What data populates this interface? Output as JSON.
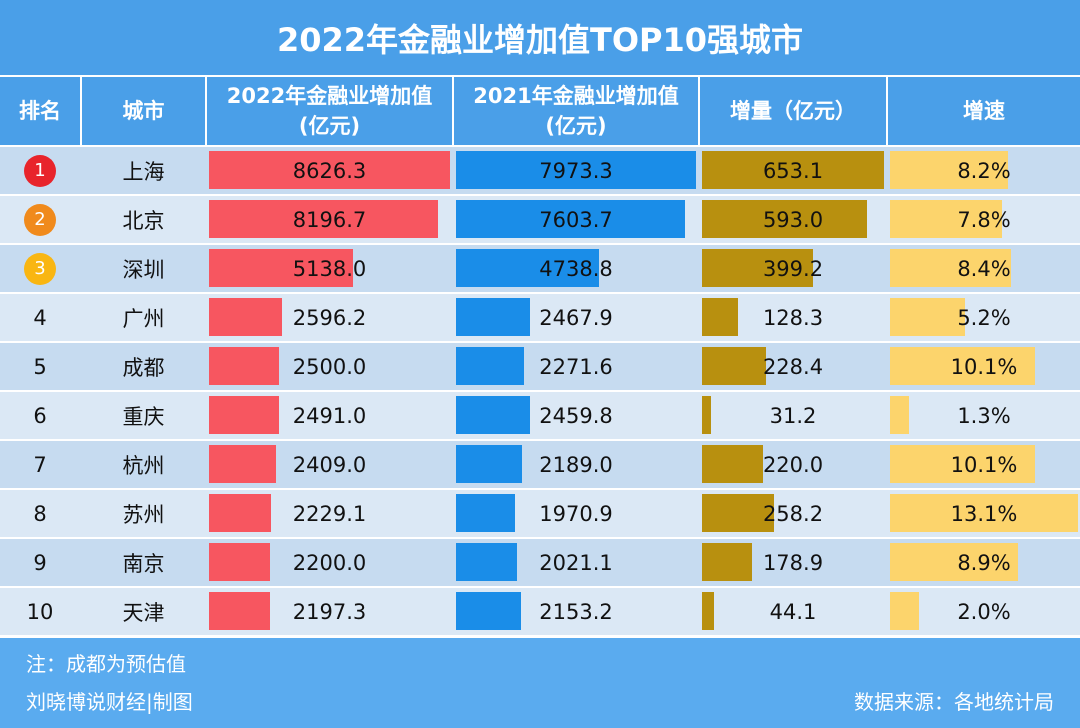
{
  "title": "2022年金融业增加值TOP10强城市",
  "table": {
    "columns": [
      [
        "排名"
      ],
      [
        "城市"
      ],
      [
        "2022年金融业增加值",
        "(亿元)"
      ],
      [
        "2021年金融业增加值",
        "(亿元)"
      ],
      [
        "增量（亿元）"
      ],
      [
        "增速"
      ]
    ],
    "rows": [
      [
        "1",
        "上海",
        "8626.3",
        "7973.3",
        "653.1",
        "8.2%"
      ],
      [
        "2",
        "北京",
        "8196.7",
        "7603.7",
        "593.0",
        "7.8%"
      ],
      [
        "3",
        "深圳",
        "5138.0",
        "4738.8",
        "399.2",
        "8.4%"
      ],
      [
        "4",
        "广州",
        "2596.2",
        "2467.9",
        "128.3",
        "5.2%"
      ],
      [
        "5",
        "成都",
        "2500.0",
        "2271.6",
        "228.4",
        "10.1%"
      ],
      [
        "6",
        "重庆",
        "2491.0",
        "2459.8",
        "31.2",
        "1.3%"
      ],
      [
        "7",
        "杭州",
        "2409.0",
        "2189.0",
        "220.0",
        "10.1%"
      ],
      [
        "8",
        "苏州",
        "2229.1",
        "1970.9",
        "258.2",
        "13.1%"
      ],
      [
        "9",
        "南京",
        "2200.0",
        "2021.1",
        "178.9",
        "8.9%"
      ],
      [
        "10",
        "天津",
        "2197.3",
        "2153.2",
        "44.1",
        "2.0%"
      ]
    ]
  },
  "footer": {
    "note": "注：成都为预估值",
    "credit": "刘晓博说财经|制图",
    "source": "数据来源：各地统计局"
  }
}
